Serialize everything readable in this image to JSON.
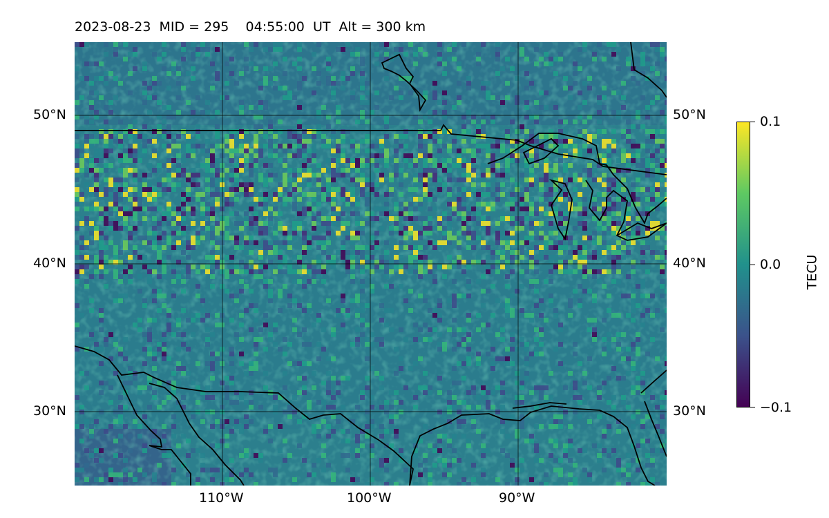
{
  "title": "2023-08-23  MID = 295    04:55:00  UT  Alt = 300 km",
  "map": {
    "lat_labels": [
      "50°N",
      "40°N",
      "30°N"
    ],
    "lon_labels": [
      "110°W",
      "100°W",
      "90°W"
    ],
    "lat_range": [
      25,
      55
    ],
    "lon_range": [
      -120,
      -80
    ]
  },
  "colorbar": {
    "label": "TECU",
    "tick_labels": [
      "0.1",
      "0.0",
      "−0.1"
    ],
    "colors": [
      "#fde725",
      "#5ec962",
      "#21918c",
      "#3b528b",
      "#440154"
    ]
  }
}
